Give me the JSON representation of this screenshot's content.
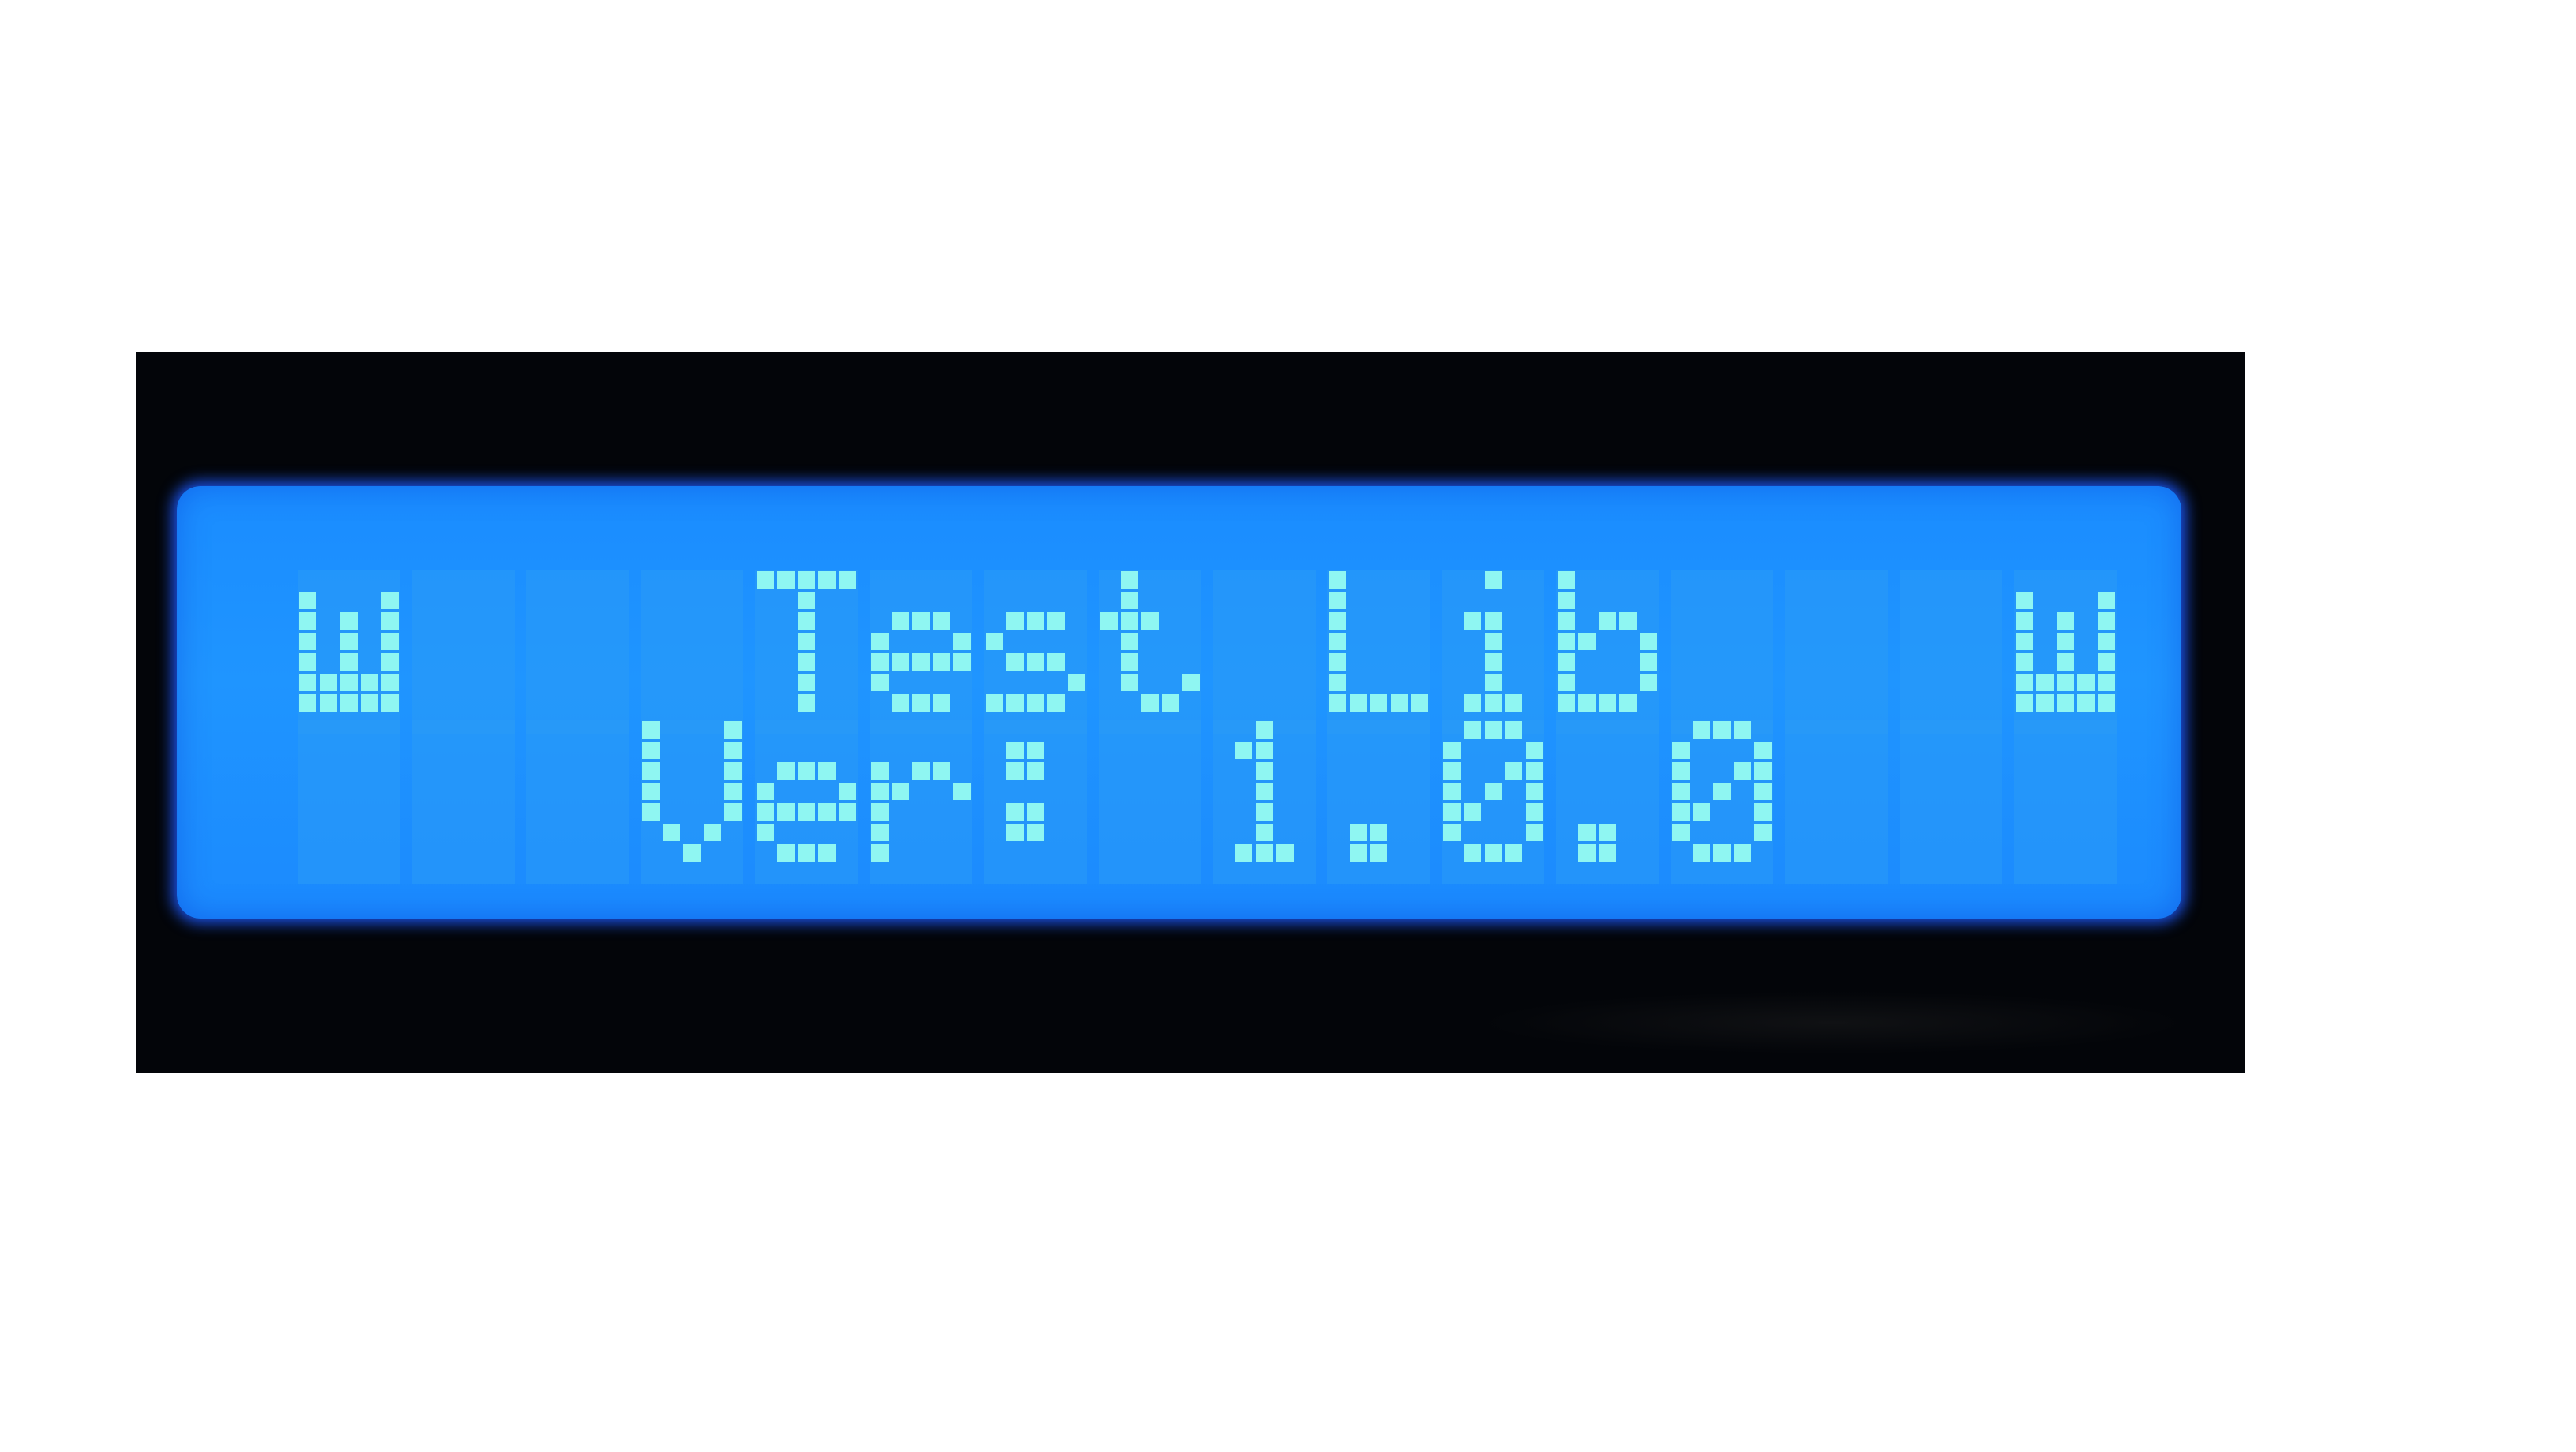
{
  "display": {
    "line1": "Test Lib",
    "line2": "Ver: 1.0.0",
    "left_icon": "w-block-icon",
    "right_icon": "w-block-icon",
    "backlight_color": "#1f95ff",
    "pixel_on_color": "#8ff6f2",
    "bezel_color": "#030509",
    "columns": 16,
    "rows": 2
  }
}
